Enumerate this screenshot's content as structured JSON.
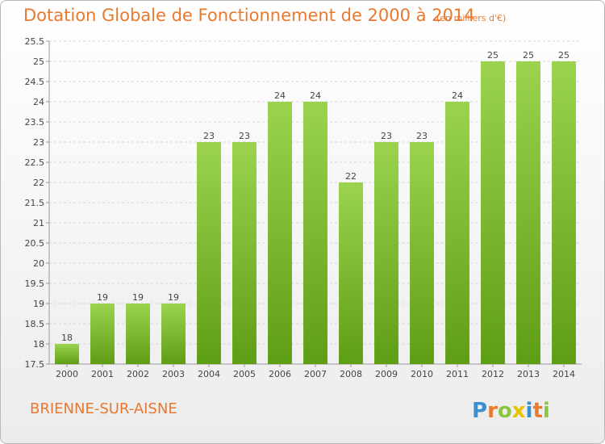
{
  "header": {
    "title": "Dotation Globale de Fonctionnement de 2000 à 2014",
    "unit": "(en milliers d'€)"
  },
  "footer": {
    "commune": "BRIENNE-SUR-AISNE",
    "logo_text": "Proxiti"
  },
  "colors": {
    "accent": "#e8792e",
    "bar_light": "#9bd34e",
    "bar_dark": "#5e9e14"
  },
  "chart_data": {
    "type": "bar",
    "categories": [
      "2000",
      "2001",
      "2002",
      "2003",
      "2004",
      "2005",
      "2006",
      "2007",
      "2008",
      "2009",
      "2010",
      "2011",
      "2012",
      "2013",
      "2014"
    ],
    "values": [
      18,
      19,
      19,
      19,
      23,
      23,
      24,
      24,
      22,
      23,
      23,
      24,
      25,
      25,
      25
    ],
    "data_labels": [
      "18",
      "19",
      "19",
      "19",
      "23",
      "23",
      "24",
      "24",
      "22",
      "23",
      "23",
      "24",
      "25",
      "25",
      "25"
    ],
    "y_ticks": [
      "17.5",
      "18",
      "18.5",
      "19",
      "19.5",
      "20",
      "20.5",
      "21",
      "21.5",
      "22",
      "22.5",
      "23",
      "23.5",
      "24",
      "24.5",
      "25",
      "25.5"
    ],
    "ylim": [
      17.5,
      25.5
    ],
    "grid": true,
    "title": "Dotation Globale de Fonctionnement de 2000 à 2014",
    "xlabel": "",
    "ylabel": ""
  }
}
